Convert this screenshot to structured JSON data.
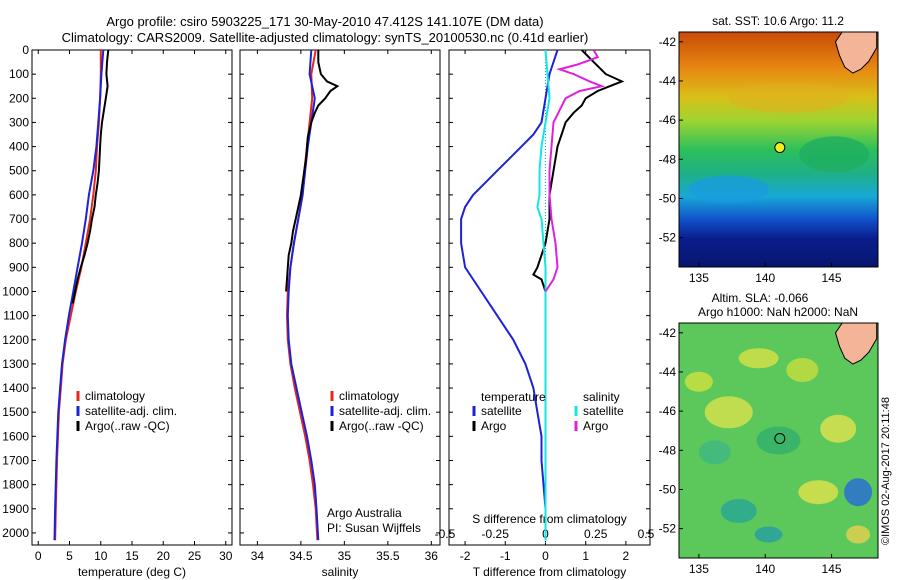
{
  "header": {
    "title_line1": "Argo profile: csiro 5903225_171 30-May-2010 47.412S 141.107E (DM data)",
    "title_line2": "Climatology: CARS2009. Satellite-adjusted climatology: synTS_20100530.nc (0.41d earlier)"
  },
  "credit": "©IMOS 02-Aug-2017 20:11:48",
  "colors": {
    "climatology": "#e8251d",
    "satellite": "#1c22d6",
    "argo": "#000000",
    "salinity_satellite": "#12e6e6",
    "salinity_argo": "#e020e0",
    "zero_line": "#00a0ff",
    "land": "#f4b497"
  },
  "chart_data": [
    {
      "id": "temperature",
      "type": "line",
      "xlabel": "temperature (deg C)",
      "ylabel": "",
      "xlim": [
        -1,
        31
      ],
      "xticks": [
        0,
        5,
        10,
        15,
        20,
        25,
        30
      ],
      "ylim": [
        2050,
        0
      ],
      "yticks": [
        0,
        100,
        200,
        300,
        400,
        500,
        600,
        700,
        800,
        900,
        1000,
        1100,
        1200,
        1300,
        1400,
        1500,
        1600,
        1700,
        1800,
        1900,
        2000
      ],
      "legend": [
        "climatology",
        "satellite-adj. clim.",
        "Argo(..raw -QC)"
      ],
      "legend_placement": "lower-middle",
      "series": [
        {
          "name": "climatology",
          "color_key": "climatology",
          "depth": [
            0,
            100,
            200,
            300,
            400,
            500,
            600,
            700,
            800,
            900,
            1000,
            1100,
            1200,
            1300,
            1400,
            1500,
            1700,
            1900,
            2030
          ],
          "values": [
            10.0,
            10.0,
            9.9,
            9.7,
            9.4,
            9.2,
            8.8,
            8.3,
            7.6,
            6.9,
            6.0,
            5.2,
            4.4,
            3.9,
            3.6,
            3.3,
            3.0,
            2.8,
            2.7
          ]
        },
        {
          "name": "satellite-adj. clim.",
          "color_key": "satellite",
          "depth": [
            0,
            100,
            200,
            300,
            400,
            500,
            600,
            700,
            800,
            900,
            1000,
            1100,
            1200,
            1300,
            1400,
            1500,
            1700,
            1900,
            2030
          ],
          "values": [
            10.4,
            10.1,
            9.9,
            9.6,
            9.3,
            8.8,
            8.1,
            7.6,
            7.0,
            6.3,
            5.6,
            4.9,
            4.3,
            3.8,
            3.5,
            3.2,
            2.9,
            2.7,
            2.6
          ]
        },
        {
          "name": "Argo(..raw -QC)",
          "color_key": "argo",
          "depth": [
            0,
            50,
            100,
            150,
            200,
            250,
            300,
            350,
            400,
            450,
            500,
            550,
            600,
            650,
            700,
            750,
            800,
            850,
            900,
            950,
            1000,
            1050
          ],
          "values": [
            11.2,
            11.0,
            10.9,
            11.1,
            10.8,
            10.5,
            10.2,
            10.0,
            9.9,
            9.8,
            9.7,
            9.5,
            9.2,
            9.0,
            8.6,
            8.3,
            7.9,
            7.4,
            6.8,
            6.3,
            5.9,
            5.5
          ]
        }
      ]
    },
    {
      "id": "salinity",
      "type": "line",
      "xlabel": "salinity",
      "ylabel": "",
      "xlim": [
        33.8,
        36.1
      ],
      "xticks": [
        34,
        34.5,
        35,
        35.5,
        36
      ],
      "ylim": [
        2050,
        0
      ],
      "legend": [
        "climatology",
        "satellite-adj. clim.",
        "Argo(..raw -QC)"
      ],
      "legend_placement": "lower-right",
      "annotation_line1": "Argo Australia",
      "annotation_line2": "PI: Susan Wijffels",
      "series": [
        {
          "name": "climatology",
          "color_key": "climatology",
          "depth": [
            0,
            100,
            200,
            300,
            400,
            500,
            600,
            700,
            800,
            900,
            1000,
            1100,
            1200,
            1300,
            1400,
            1500,
            1600,
            1700,
            1800,
            1900,
            2030
          ],
          "values": [
            34.67,
            34.62,
            34.63,
            34.6,
            34.57,
            34.54,
            34.52,
            34.47,
            34.42,
            34.38,
            34.35,
            34.34,
            34.35,
            34.38,
            34.43,
            34.49,
            34.55,
            34.6,
            34.64,
            34.67,
            34.69
          ]
        },
        {
          "name": "satellite-adj. clim.",
          "color_key": "satellite",
          "depth": [
            0,
            100,
            200,
            300,
            400,
            500,
            600,
            700,
            800,
            900,
            1000,
            1100,
            1200,
            1300,
            1400,
            1500,
            1600,
            1700,
            1800,
            1900,
            2030
          ],
          "values": [
            34.62,
            34.6,
            34.66,
            34.62,
            34.58,
            34.55,
            34.52,
            34.47,
            34.42,
            34.38,
            34.36,
            34.35,
            34.36,
            34.39,
            34.45,
            34.51,
            34.57,
            34.62,
            34.66,
            34.68,
            34.7
          ]
        },
        {
          "name": "Argo(..raw -QC)",
          "color_key": "argo",
          "depth": [
            0,
            50,
            100,
            130,
            150,
            170,
            200,
            230,
            260,
            300,
            330,
            360,
            400,
            450,
            500,
            550,
            600,
            650,
            700,
            750,
            800,
            850,
            900,
            950,
            1000
          ],
          "values": [
            34.7,
            34.7,
            34.73,
            34.8,
            34.92,
            34.84,
            34.78,
            34.7,
            34.66,
            34.62,
            34.6,
            34.58,
            34.57,
            34.56,
            34.54,
            34.52,
            34.5,
            34.47,
            34.44,
            34.41,
            34.39,
            34.36,
            34.35,
            34.34,
            34.33
          ]
        }
      ]
    },
    {
      "id": "differences",
      "type": "line",
      "xlabel": "T difference from climatology",
      "xlim": [
        -2.4,
        2.6
      ],
      "xticks": [
        -2,
        -1,
        0,
        1,
        2
      ],
      "xtick_labels": [
        "-2",
        "-1",
        "0",
        "1",
        "2"
      ],
      "secondary_xlabel": "S difference from climatology",
      "secondary_xticks": [
        -0.5,
        -0.25,
        0,
        0.25,
        0.5
      ],
      "secondary_xtick_labels": [
        "-0.5",
        "-0.25",
        "0",
        "0.25",
        "0.5"
      ],
      "secondary_scale": 0.2,
      "ylim": [
        2050,
        0
      ],
      "legend_temperature_title": "temperature",
      "legend_salinity_title": "salinity",
      "legend_temperature": [
        "satellite",
        "Argo"
      ],
      "legend_salinity": [
        "satellite",
        "Argo"
      ],
      "legend_placement": "lower-middle",
      "series": [
        {
          "name": "temperature satellite",
          "color_key": "satellite",
          "units": "degC",
          "depth": [
            0,
            100,
            200,
            300,
            350,
            400,
            450,
            500,
            550,
            600,
            650,
            700,
            800,
            900,
            1000,
            1100,
            1200,
            1300,
            1400,
            1500,
            1600,
            1700,
            1800,
            1900,
            2030
          ],
          "values": [
            0.3,
            0.1,
            0.0,
            -0.1,
            -0.3,
            -0.6,
            -0.9,
            -1.2,
            -1.5,
            -1.8,
            -2.0,
            -2.1,
            -2.1,
            -2.0,
            -1.6,
            -1.2,
            -0.8,
            -0.5,
            -0.3,
            -0.2,
            -0.1,
            -0.1,
            -0.05,
            0.0,
            0.0
          ]
        },
        {
          "name": "temperature Argo",
          "color_key": "argo",
          "units": "degC",
          "depth": [
            0,
            50,
            100,
            130,
            150,
            170,
            200,
            230,
            260,
            300,
            350,
            400,
            500,
            600,
            700,
            800,
            900,
            930,
            950,
            1000
          ],
          "values": [
            0.9,
            1.2,
            1.5,
            1.9,
            1.6,
            1.3,
            1.0,
            0.9,
            0.7,
            0.5,
            0.4,
            0.3,
            0.2,
            0.1,
            0.1,
            0.0,
            -0.2,
            -0.3,
            -0.1,
            0.0
          ]
        },
        {
          "name": "salinity satellite",
          "color_key": "salinity_satellite",
          "units": "psu",
          "depth": [
            0,
            100,
            200,
            300,
            400,
            500,
            600,
            650,
            700,
            800,
            900,
            1000,
            1100,
            1200,
            1400,
            1600,
            1800,
            2030
          ],
          "values": [
            0.0,
            0.01,
            0.02,
            0.0,
            -0.02,
            -0.03,
            -0.03,
            -0.04,
            -0.02,
            -0.01,
            0.0,
            0.0,
            0.0,
            0.0,
            0.0,
            0.0,
            0.0,
            0.0
          ]
        },
        {
          "name": "salinity Argo",
          "color_key": "salinity_argo",
          "units": "psu",
          "depth": [
            0,
            30,
            60,
            80,
            100,
            130,
            150,
            170,
            200,
            250,
            300,
            400,
            500,
            600,
            700,
            800,
            900,
            950,
            1000
          ],
          "values": [
            0.24,
            0.26,
            0.16,
            0.07,
            0.14,
            0.22,
            0.28,
            0.17,
            0.1,
            0.07,
            0.04,
            0.03,
            0.02,
            0.02,
            0.03,
            0.05,
            0.06,
            0.04,
            0.0
          ]
        }
      ]
    },
    {
      "id": "sst_map",
      "type": "heatmap",
      "title": "sat. SST: 10.6 Argo: 11.2",
      "xlim": [
        133.5,
        148.5
      ],
      "xticks": [
        135,
        140,
        145
      ],
      "ylim": [
        -53.5,
        -41.5
      ],
      "yticks": [
        -42,
        -44,
        -46,
        -48,
        -50,
        -52
      ],
      "float_position": {
        "lon": 141.1,
        "lat": -47.4,
        "marker": "yellow-circle"
      }
    },
    {
      "id": "sla_map",
      "type": "heatmap",
      "title_line1": "Altim. SLA: -0.066",
      "title_line2": "Argo h1000: NaN h2000: NaN",
      "xlim": [
        133.5,
        148.5
      ],
      "xticks": [
        135,
        140,
        145
      ],
      "ylim": [
        -53.5,
        -41.5
      ],
      "yticks": [
        -42,
        -44,
        -46,
        -48,
        -50,
        -52
      ],
      "float_position": {
        "lon": 141.1,
        "lat": -47.4,
        "marker": "open-circle"
      }
    }
  ]
}
